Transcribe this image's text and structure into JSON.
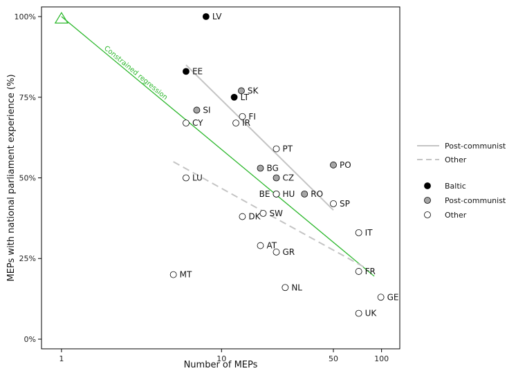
{
  "chart_data": {
    "type": "scatter",
    "title": "",
    "xlabel": "Number of MEPs",
    "ylabel": "MEPs with national parliament experience (%)",
    "x_scale": "log",
    "xlim": [
      0.75,
      130
    ],
    "ylim": [
      -3,
      103
    ],
    "x_ticks": [
      {
        "value": 1,
        "label": "1"
      },
      {
        "value": 10,
        "label": "10"
      },
      {
        "value": 50,
        "label": "50"
      },
      {
        "value": 100,
        "label": "100"
      }
    ],
    "y_ticks": [
      {
        "value": 0,
        "label": "0%"
      },
      {
        "value": 25,
        "label": "25%"
      },
      {
        "value": 50,
        "label": "50%"
      },
      {
        "value": 75,
        "label": "75%"
      },
      {
        "value": 100,
        "label": "100%"
      }
    ],
    "grid": false,
    "colors": {
      "baltic": "#000000",
      "post_communist": "#a6a6a6",
      "other": "#ffffff",
      "constrained": "#2db82d",
      "trend": "#c4c4c4"
    },
    "points": [
      {
        "label": "LV",
        "x": 8,
        "y": 100,
        "group": "baltic"
      },
      {
        "label": "EE",
        "x": 6,
        "y": 83,
        "group": "baltic"
      },
      {
        "label": "LT",
        "x": 12,
        "y": 75,
        "group": "baltic"
      },
      {
        "label": "SK",
        "x": 13.3,
        "y": 77,
        "group": "post_communist"
      },
      {
        "label": "SI",
        "x": 7,
        "y": 71,
        "group": "post_communist"
      },
      {
        "label": "BG",
        "x": 17.5,
        "y": 53,
        "group": "post_communist"
      },
      {
        "label": "CZ",
        "x": 22,
        "y": 50,
        "group": "post_communist"
      },
      {
        "label": "HU",
        "x": 22,
        "y": 45,
        "group": "post_communist"
      },
      {
        "label": "RO",
        "x": 33,
        "y": 45,
        "group": "post_communist"
      },
      {
        "label": "PO",
        "x": 50,
        "y": 54,
        "group": "post_communist"
      },
      {
        "label": "FI",
        "x": 13.5,
        "y": 69,
        "group": "other"
      },
      {
        "label": "CY",
        "x": 6,
        "y": 67,
        "group": "other"
      },
      {
        "label": "IR",
        "x": 12.3,
        "y": 67,
        "group": "other"
      },
      {
        "label": "PT",
        "x": 22,
        "y": 59,
        "group": "other"
      },
      {
        "label": "LU",
        "x": 6,
        "y": 50,
        "group": "other"
      },
      {
        "label": "SP",
        "x": 50,
        "y": 42,
        "group": "other"
      },
      {
        "label": "BE",
        "x": 22,
        "y": 45,
        "group": "other"
      },
      {
        "label": "SW",
        "x": 18.2,
        "y": 39,
        "group": "other"
      },
      {
        "label": "DK",
        "x": 13.5,
        "y": 38,
        "group": "other"
      },
      {
        "label": "IT",
        "x": 72,
        "y": 33,
        "group": "other"
      },
      {
        "label": "AT",
        "x": 17.5,
        "y": 29,
        "group": "other"
      },
      {
        "label": "GR",
        "x": 22,
        "y": 27,
        "group": "other"
      },
      {
        "label": "FR",
        "x": 72,
        "y": 21,
        "group": "other"
      },
      {
        "label": "MT",
        "x": 5,
        "y": 20,
        "group": "other"
      },
      {
        "label": "NL",
        "x": 25,
        "y": 16,
        "group": "other"
      },
      {
        "label": "GE",
        "x": 99,
        "y": 13,
        "group": "other"
      },
      {
        "label": "UK",
        "x": 72,
        "y": 8,
        "group": "other"
      }
    ],
    "lines": [
      {
        "name": "Constrained regression",
        "style": "constrained",
        "x": [
          1,
          90
        ],
        "y": [
          100,
          19.5
        ]
      },
      {
        "name": "Post-communist",
        "style": "solid",
        "x": [
          6,
          50
        ],
        "y": [
          85,
          40
        ]
      },
      {
        "name": "Other",
        "style": "dashed",
        "x": [
          5,
          80
        ],
        "y": [
          55,
          22
        ]
      }
    ],
    "constrained_marker": {
      "x": 1,
      "y": 99.5
    },
    "annotation": "Constrained regression",
    "legend": {
      "placement": "right",
      "line_entries": [
        {
          "label": "Post-communist",
          "style": "solid"
        },
        {
          "label": "Other",
          "style": "dashed"
        }
      ],
      "marker_entries": [
        {
          "label": "Baltic",
          "group": "baltic"
        },
        {
          "label": "Post-communist",
          "group": "post_communist"
        },
        {
          "label": "Other",
          "group": "other"
        }
      ]
    }
  }
}
